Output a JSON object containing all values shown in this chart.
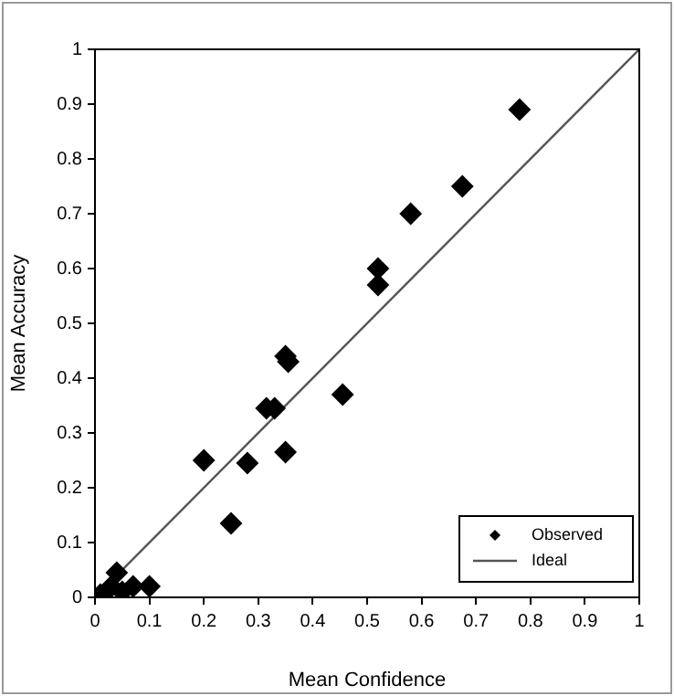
{
  "chart_data": {
    "type": "scatter",
    "xlabel": "Mean Confidence",
    "ylabel": "Mean Accuracy",
    "xlim": [
      0,
      1
    ],
    "ylim": [
      0,
      1
    ],
    "xticks": [
      0,
      0.1,
      0.2,
      0.3,
      0.4,
      0.5,
      0.6,
      0.7,
      0.8,
      0.9,
      1
    ],
    "yticks": [
      0,
      0.1,
      0.2,
      0.3,
      0.4,
      0.5,
      0.6,
      0.7,
      0.8,
      0.9,
      1
    ],
    "grid": false,
    "legend": "bottom right",
    "series": [
      {
        "name": "Observed",
        "type": "scatter",
        "marker": "diamond",
        "color": "#000000",
        "x": [
          0.78,
          0.675,
          0.58,
          0.52,
          0.52,
          0.455,
          0.35,
          0.355,
          0.35,
          0.315,
          0.33,
          0.28,
          0.25,
          0.2,
          0.04,
          0.1,
          0.07,
          0.03,
          0.01,
          0.05
        ],
        "values": [
          0.89,
          0.75,
          0.7,
          0.6,
          0.57,
          0.37,
          0.44,
          0.43,
          0.265,
          0.345,
          0.345,
          0.245,
          0.135,
          0.25,
          0.045,
          0.02,
          0.02,
          0.02,
          0.005,
          0.01
        ]
      },
      {
        "name": "Ideal",
        "type": "line",
        "marker": "none",
        "line_style": "solid",
        "color": "#555555",
        "x": [
          0,
          1
        ],
        "values": [
          0,
          1
        ]
      }
    ]
  }
}
